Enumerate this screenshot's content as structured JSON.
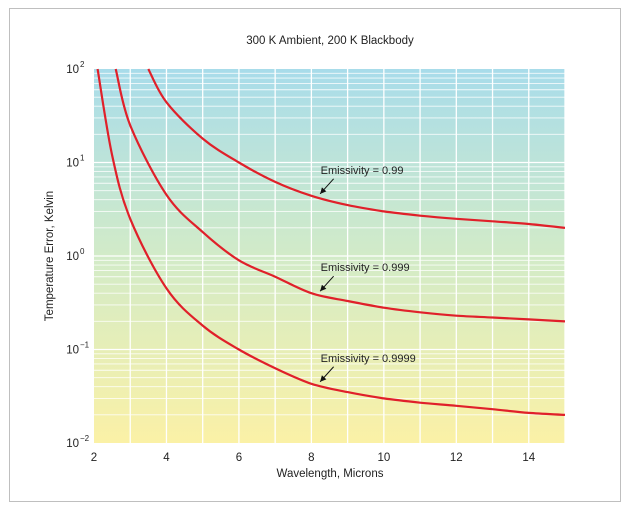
{
  "chart_data": {
    "type": "line",
    "title": "300 K Ambient, 200 K Blackbody",
    "xlabel": "Wavelength, Microns",
    "ylabel": "Temperature Error, Kelvin",
    "xlim": [
      2,
      15
    ],
    "ylim": [
      0.01,
      100
    ],
    "yscale": "log",
    "grid": true,
    "xticks": [
      2,
      4,
      6,
      8,
      10,
      12,
      14
    ],
    "xtick_labels": [
      "2",
      "4",
      "6",
      "8",
      "10",
      "12",
      "14"
    ],
    "yticks": [
      {
        "base": "10",
        "exp": "2",
        "value": 100
      },
      {
        "base": "10",
        "exp": "1",
        "value": 10
      },
      {
        "base": "10",
        "exp": "0",
        "value": 1
      },
      {
        "base": "10",
        "exp": "−1",
        "value": 0.1
      },
      {
        "base": "10",
        "exp": "−2",
        "value": 0.01
      }
    ],
    "series": [
      {
        "name": "Emissivity = 0.99",
        "color": "#e0202a",
        "x": [
          3.5,
          4,
          5,
          6,
          7,
          8,
          9,
          10,
          11,
          12,
          13,
          14,
          15
        ],
        "y": [
          100,
          44,
          18,
          10,
          6.2,
          4.4,
          3.5,
          3.0,
          2.7,
          2.5,
          2.35,
          2.2,
          2.0
        ]
      },
      {
        "name": "Emissivity = 0.999",
        "color": "#e0202a",
        "x": [
          2.6,
          3,
          4,
          5,
          6,
          7,
          8,
          9,
          10,
          11,
          12,
          13,
          14,
          15
        ],
        "y": [
          100,
          25,
          4.5,
          1.8,
          0.9,
          0.6,
          0.4,
          0.33,
          0.28,
          0.25,
          0.23,
          0.22,
          0.21,
          0.2
        ]
      },
      {
        "name": "Emissivity = 0.9999",
        "color": "#e0202a",
        "x": [
          2.1,
          2.5,
          3,
          4,
          5,
          6,
          7,
          8,
          9,
          10,
          11,
          12,
          13,
          14,
          15
        ],
        "y": [
          100,
          12,
          2.5,
          0.45,
          0.18,
          0.1,
          0.063,
          0.043,
          0.035,
          0.03,
          0.027,
          0.025,
          0.023,
          0.021,
          0.02
        ]
      }
    ],
    "annotations": [
      {
        "text": "Emissivity = 0.99",
        "series": 0,
        "x": 8.2,
        "y": 4.4
      },
      {
        "text": "Emissivity = 0.999",
        "series": 1,
        "x": 8.2,
        "y": 0.4
      },
      {
        "text": "Emissivity = 0.9999",
        "series": 2,
        "x": 8.2,
        "y": 0.043
      }
    ],
    "colors": {
      "background_top": "#a8dcea",
      "background_mid": "#d2ebc8",
      "background_bottom": "#fbf1a6",
      "gridline": "#ffffff",
      "curve": "#e0202a"
    }
  }
}
